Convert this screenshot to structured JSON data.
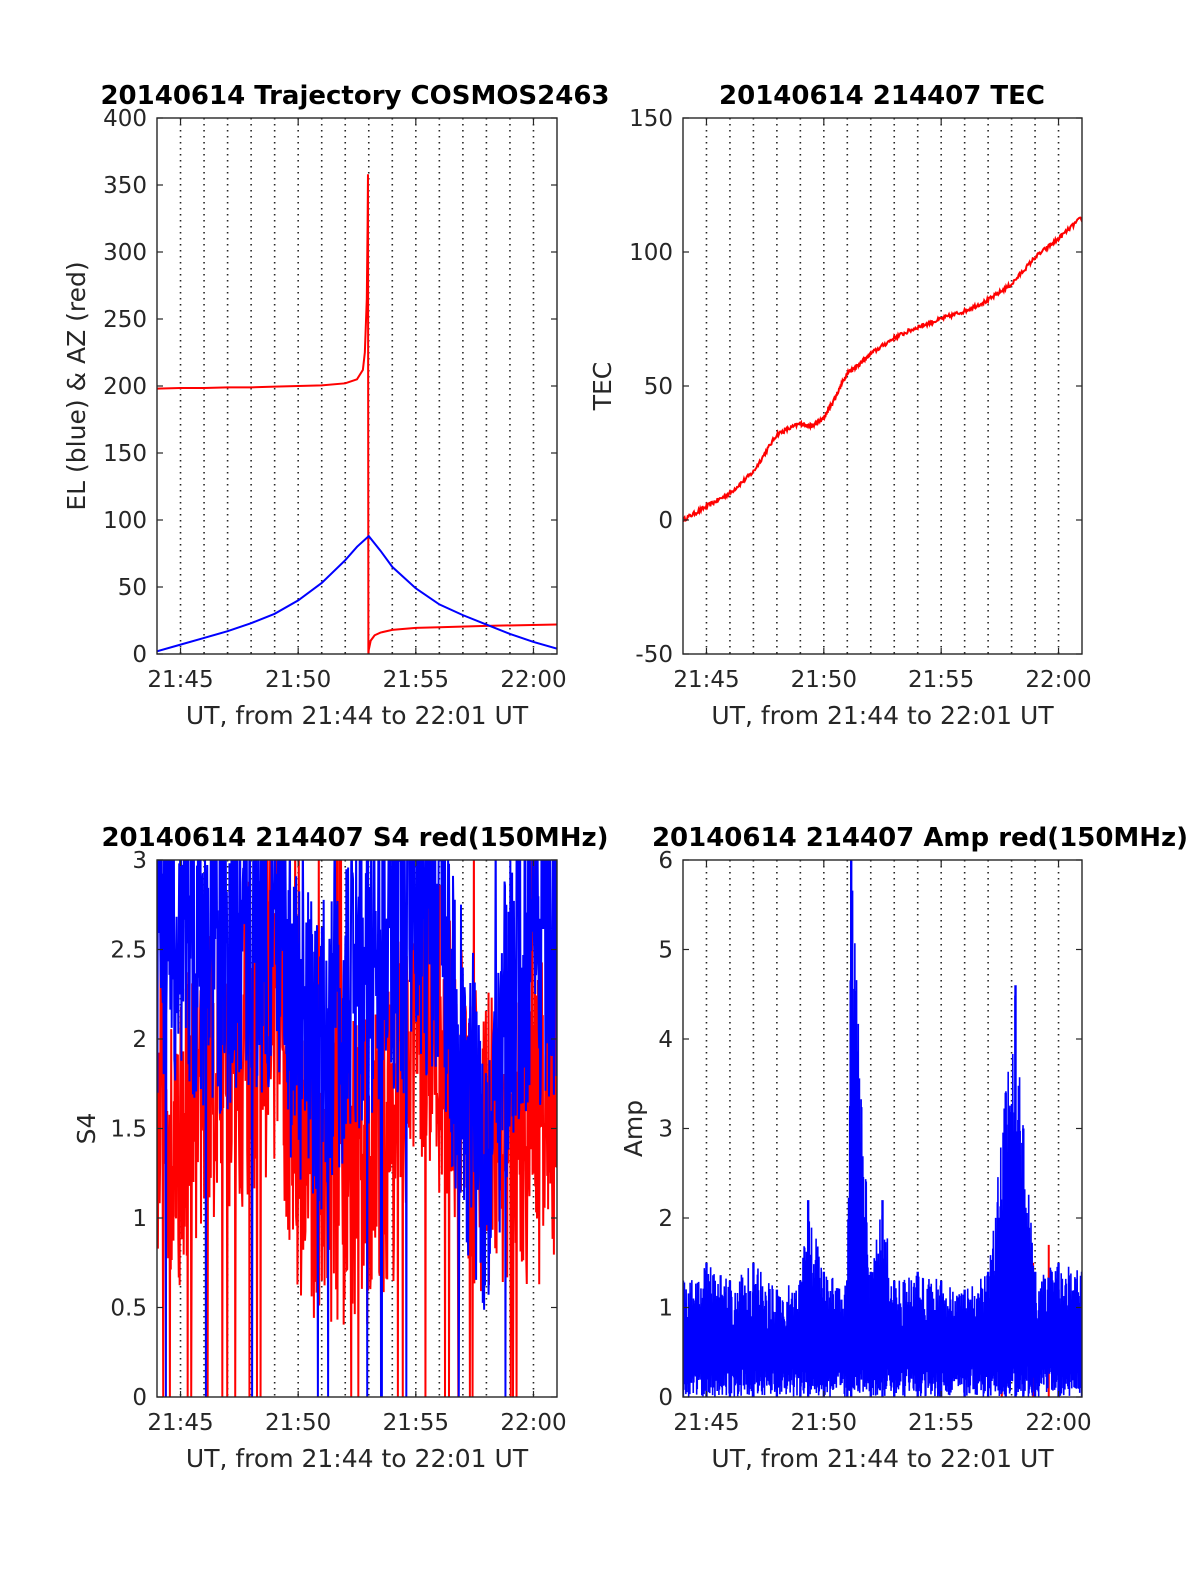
{
  "chart_data": [
    {
      "type": "line",
      "title": "20140614 Trajectory COSMOS2463",
      "xlabel": "UT, from 21:44 to 22:01 UT",
      "ylabel": "EL (blue) & AZ (red)",
      "xlim": [
        "21:44",
        "22:01"
      ],
      "ylim": [
        0,
        400
      ],
      "xticks": [
        "21:45",
        "21:50",
        "21:55",
        "22:00"
      ],
      "yticks": [
        0,
        50,
        100,
        150,
        200,
        250,
        300,
        350,
        400
      ],
      "grid": "x-dotted",
      "series": [
        {
          "color": "#ff0000",
          "x": [
            "21:44:00",
            "21:45:00",
            "21:46:00",
            "21:47:00",
            "21:48:00",
            "21:49:00",
            "21:50:00",
            "21:51:00",
            "21:52:00",
            "21:52:30",
            "21:52:45",
            "21:52:50",
            "21:52:55",
            "21:52:57",
            "21:52:58",
            "21:52:59",
            "21:53:00",
            "21:53:05",
            "21:53:15",
            "21:53:30",
            "21:54:00",
            "21:55:00",
            "21:56:00",
            "21:58:00",
            "22:01:00"
          ],
          "y": [
            198,
            198.5,
            198.5,
            199,
            199,
            199.5,
            200,
            200.5,
            202,
            205,
            212,
            225,
            265,
            320,
            358,
            0,
            3,
            10,
            14,
            16,
            18,
            19.5,
            20,
            21,
            22
          ]
        },
        {
          "color": "#0000ff",
          "x": [
            "21:44:00",
            "21:45:00",
            "21:46:00",
            "21:47:00",
            "21:48:00",
            "21:49:00",
            "21:50:00",
            "21:51:00",
            "21:52:00",
            "21:52:30",
            "21:53:00",
            "21:53:30",
            "21:54:00",
            "21:55:00",
            "21:56:00",
            "21:57:00",
            "21:58:00",
            "21:59:00",
            "22:00:00",
            "22:01:00"
          ],
          "y": [
            2,
            7,
            12,
            17,
            23,
            30,
            40,
            53,
            70,
            80,
            88,
            77,
            65,
            49,
            37,
            29,
            22,
            15,
            9,
            4
          ]
        }
      ]
    },
    {
      "type": "line",
      "title": "20140614 214407 TEC",
      "xlabel": "UT, from 21:44 to 22:01 UT",
      "ylabel": "TEC",
      "xlim": [
        "21:44",
        "22:01"
      ],
      "ylim": [
        -50,
        150
      ],
      "xticks": [
        "21:45",
        "21:50",
        "21:55",
        "22:00"
      ],
      "yticks": [
        -50,
        0,
        50,
        100,
        150
      ],
      "grid": "x-dotted",
      "series": [
        {
          "color": "#ff0000",
          "x": [
            "21:44:00",
            "21:45:00",
            "21:46:00",
            "21:47:00",
            "21:48:00",
            "21:49:00",
            "21:49:30",
            "21:50:00",
            "21:50:30",
            "21:51:00",
            "21:51:30",
            "21:52:00",
            "21:53:00",
            "21:54:00",
            "21:55:00",
            "21:56:00",
            "21:57:00",
            "21:58:00",
            "21:59:00",
            "22:00:00",
            "22:01:00"
          ],
          "y": [
            0,
            5,
            10,
            18,
            32,
            36,
            35,
            38,
            46,
            55,
            58,
            62,
            68,
            72,
            75,
            78,
            82,
            88,
            98,
            105,
            113
          ]
        }
      ]
    },
    {
      "type": "line",
      "title": "20140614 214407 S4 red(150MHz)",
      "xlabel": "UT, from 21:44 to 22:01 UT",
      "ylabel": "S4",
      "xlim": [
        "21:44",
        "22:01"
      ],
      "ylim": [
        0,
        3
      ],
      "xticks": [
        "21:45",
        "21:50",
        "21:55",
        "22:00"
      ],
      "yticks": [
        0,
        0.5,
        1,
        1.5,
        2,
        2.5,
        3
      ],
      "grid": "x-dotted",
      "series": [
        {
          "color": "#ff0000",
          "x": [
            "21:44:00",
            "21:45:00",
            "21:46:00",
            "21:47:00",
            "21:48:00",
            "21:49:00",
            "21:50:00",
            "21:51:00",
            "21:52:00",
            "21:53:00",
            "21:54:00",
            "21:55:00",
            "21:56:00",
            "21:57:00",
            "21:58:00",
            "21:59:00",
            "22:00:00",
            "22:01:00"
          ],
          "y": [
            1.6,
            1.5,
            1.9,
            1.9,
            2.0,
            2.2,
            1.4,
            1.3,
            1.3,
            1.3,
            1.5,
            2.2,
            2.0,
            1.6,
            1.4,
            1.5,
            1.5,
            1.6
          ]
        },
        {
          "color": "#0000ff",
          "x": [
            "21:44:00",
            "21:45:00",
            "21:46:00",
            "21:47:00",
            "21:48:00",
            "21:49:00",
            "21:50:00",
            "21:51:00",
            "21:52:00",
            "21:53:00",
            "21:54:00",
            "21:55:00",
            "21:56:00",
            "21:57:00",
            "21:58:00",
            "21:59:00",
            "22:00:00",
            "22:01:00"
          ],
          "y": [
            2.6,
            2.6,
            2.4,
            2.5,
            2.6,
            2.6,
            2.0,
            1.9,
            2.2,
            2.4,
            2.5,
            2.7,
            2.6,
            1.8,
            1.3,
            2.2,
            2.5,
            2.6
          ]
        }
      ]
    },
    {
      "type": "line",
      "title": "20140614 214407 Amp red(150MHz)",
      "xlabel": "UT, from 21:44 to 22:01 UT",
      "ylabel": "Amp",
      "xlim": [
        "21:44",
        "22:01"
      ],
      "ylim": [
        0,
        6
      ],
      "xticks": [
        "21:45",
        "21:50",
        "21:55",
        "22:00"
      ],
      "yticks": [
        0,
        1,
        2,
        3,
        4,
        5,
        6
      ],
      "grid": "x-dotted",
      "series": [
        {
          "color": "#ff0000",
          "x": [
            "21:57:35",
            "21:58:55",
            "21:59:35"
          ],
          "y": [
            1.4,
            1.5,
            1.7
          ]
        },
        {
          "color": "#0000ff",
          "x": [
            "21:44:00",
            "21:45:00",
            "21:46:00",
            "21:47:00",
            "21:48:00",
            "21:49:00",
            "21:49:20",
            "21:50:00",
            "21:51:00",
            "21:51:10",
            "21:52:00",
            "21:52:30",
            "21:53:00",
            "21:54:00",
            "21:55:00",
            "21:56:00",
            "21:57:00",
            "21:57:45",
            "21:58:10",
            "21:58:30",
            "21:59:00",
            "22:00:00",
            "22:01:00"
          ],
          "y": [
            1.3,
            1.5,
            1.3,
            1.5,
            1.2,
            1.3,
            2.2,
            1.4,
            1.3,
            6.0,
            1.4,
            2.2,
            1.3,
            1.4,
            1.3,
            1.2,
            1.4,
            3.4,
            4.6,
            3.0,
            1.4,
            1.5,
            1.4
          ]
        }
      ]
    }
  ]
}
